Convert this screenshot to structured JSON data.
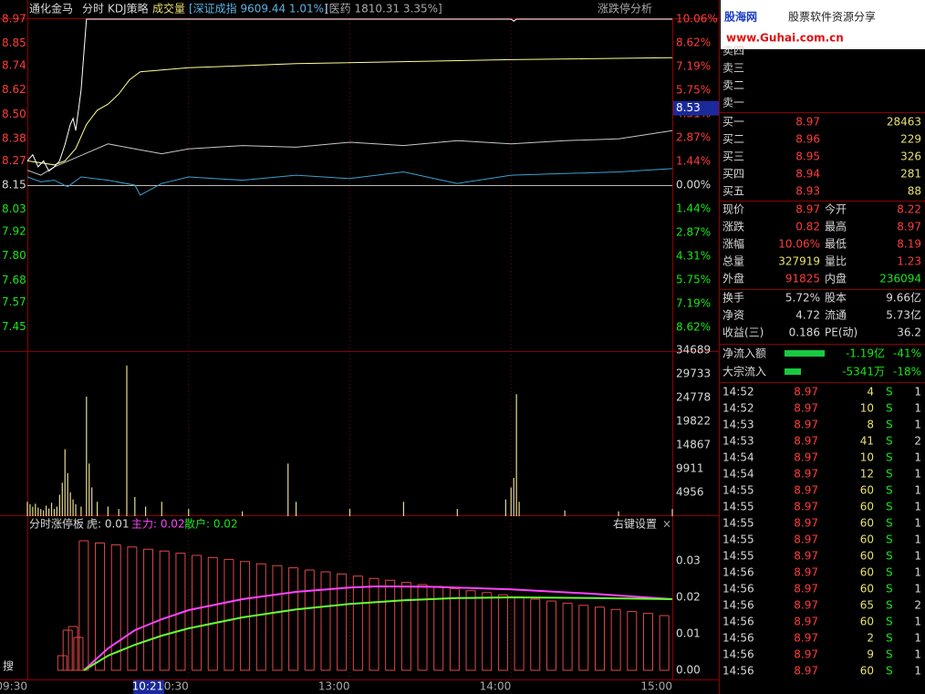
{
  "header": {
    "stock": "通化金马",
    "tabs": [
      "分时",
      "KDJ策略",
      "成交量"
    ],
    "index1": "[深证成指 9609.44 1.01%]",
    "index2": "[医药 1810.31 3.35%]",
    "analysis": "涨跌停分析"
  },
  "chart": {
    "xlim": [
      0,
      240
    ],
    "xticks": [
      {
        "value": 0,
        "label": "09:30"
      },
      {
        "value": 60,
        "label": "10:30"
      },
      {
        "value": 120,
        "label": "13:00"
      },
      {
        "value": 180,
        "label": "14:00"
      },
      {
        "value": 240,
        "label": "15:00"
      }
    ],
    "cursor": {
      "value": 51,
      "label": "10:21"
    },
    "price": {
      "ylim": [
        7.33,
        8.97
      ],
      "yticks": [
        8.97,
        8.85,
        8.74,
        8.62,
        {
          "value": 8.5,
          "label": "8.50"
        },
        8.38,
        8.27,
        8.15,
        8.03,
        7.92,
        {
          "value": 7.8,
          "label": "7.80"
        },
        7.68,
        7.57,
        7.45
      ],
      "y2lim": [
        -10.06,
        10.06
      ],
      "y2ticks": [
        {
          "value": 10.06,
          "label": "10.06%"
        },
        {
          "value": 8.62,
          "label": "8.62%"
        },
        {
          "value": 7.19,
          "label": "7.19%"
        },
        {
          "value": 5.75,
          "label": "5.75%"
        },
        {
          "value": 4.31,
          "label": "4.31%"
        },
        {
          "value": 2.87,
          "label": "2.87%"
        },
        {
          "value": 1.44,
          "label": "1.44%"
        },
        {
          "value": 0,
          "label": "0.00%"
        },
        {
          "value": -1.44,
          "label": "1.44%"
        },
        {
          "value": -2.87,
          "label": "2.87%"
        },
        {
          "value": -4.31,
          "label": "4.31%"
        },
        {
          "value": -5.75,
          "label": "5.75%"
        },
        {
          "value": -7.19,
          "label": "7.19%"
        },
        {
          "value": -8.62,
          "label": "8.62%"
        }
      ],
      "cursor_price": 8.53,
      "price_line": {
        "x": [
          0,
          2,
          4,
          6,
          8,
          10,
          12,
          14,
          16,
          17,
          18,
          19,
          20,
          21,
          22,
          100,
          180,
          181,
          182,
          240
        ],
        "values": [
          8.27,
          8.3,
          8.24,
          8.27,
          8.22,
          8.24,
          8.27,
          8.35,
          8.45,
          8.48,
          8.42,
          8.52,
          8.62,
          8.8,
          8.97,
          8.97,
          8.97,
          8.96,
          8.97,
          8.97
        ]
      },
      "avg_line": {
        "x": [
          0,
          10,
          14,
          18,
          22,
          26,
          30,
          34,
          38,
          42,
          60,
          100,
          140,
          180,
          240
        ],
        "values": [
          8.27,
          8.25,
          8.27,
          8.33,
          8.45,
          8.52,
          8.55,
          8.6,
          8.67,
          8.71,
          8.73,
          8.75,
          8.76,
          8.77,
          8.78
        ]
      },
      "sector_line": {
        "x": [
          0,
          5,
          10,
          20,
          30,
          40,
          50,
          60,
          80,
          100,
          120,
          140,
          160,
          180,
          200,
          220,
          240
        ],
        "values": [
          0.9,
          0.6,
          1.1,
          1.8,
          2.5,
          2.2,
          1.9,
          2.2,
          2.4,
          2.3,
          2.6,
          2.4,
          2.7,
          2.5,
          2.7,
          2.8,
          3.3
        ]
      },
      "index_line": {
        "x": [
          0,
          5,
          10,
          15,
          20,
          30,
          40,
          42,
          50,
          60,
          80,
          100,
          120,
          140,
          160,
          180,
          200,
          220,
          240
        ],
        "values": [
          0.5,
          0.2,
          0.3,
          -0.1,
          0.5,
          0.3,
          0,
          -0.6,
          0.1,
          0.5,
          0.3,
          0.6,
          0.4,
          0.8,
          0.1,
          0.6,
          0.7,
          0.8,
          1.0
        ]
      }
    },
    "volume": {
      "ylim": [
        0,
        34689
      ],
      "yticks": [
        4956,
        9911,
        14867,
        19822,
        24778,
        29733,
        34689
      ],
      "x": [
        0,
        1,
        2,
        3,
        4,
        5,
        6,
        7,
        8,
        9,
        10,
        11,
        12,
        13,
        14,
        15,
        16,
        17,
        18,
        20,
        22,
        23,
        24,
        26,
        30,
        34,
        37,
        40,
        44,
        50,
        60,
        80,
        97,
        100,
        120,
        140,
        160,
        178,
        180,
        181,
        182,
        183,
        200,
        220,
        240
      ],
      "values": [
        3000,
        2500,
        2000,
        2600,
        1800,
        1500,
        1200,
        2200,
        1600,
        2800,
        1500,
        2000,
        4500,
        7000,
        14000,
        9000,
        5000,
        3500,
        2500,
        2000,
        25000,
        11000,
        6000,
        3000,
        2000,
        1500,
        31500,
        4000,
        2000,
        3000,
        1500,
        1000,
        11000,
        3000,
        1500,
        3000,
        1500,
        3500,
        6000,
        8000,
        25500,
        3000,
        1200,
        1000,
        1500
      ]
    },
    "indicator": {
      "title": "分时涨停板",
      "legend": [
        "虎: 0.01",
        "主力: 0.02",
        "散户: 0.02"
      ],
      "settings": "右键设置",
      "close": "×",
      "ylim": [
        0,
        0.04
      ],
      "yticks": [
        {
          "value": 0,
          "label": "0.00"
        },
        0.01,
        0.02,
        0.03
      ],
      "bars": {
        "x": [
          13,
          15,
          17,
          19,
          21,
          27,
          33,
          39,
          45,
          51,
          57,
          63,
          69,
          75,
          81,
          87,
          93,
          99,
          105,
          111,
          117,
          123,
          129,
          135,
          141,
          147,
          153,
          159,
          165,
          171,
          177,
          183,
          189,
          195,
          201,
          207,
          213,
          219,
          225,
          231,
          237
        ],
        "values": [
          0.004,
          0.011,
          0.012,
          0.009,
          0.0355,
          0.0349,
          0.0344,
          0.0338,
          0.0332,
          0.0327,
          0.0321,
          0.0315,
          0.0309,
          0.0304,
          0.0298,
          0.0292,
          0.0287,
          0.0281,
          0.0275,
          0.027,
          0.0264,
          0.0258,
          0.0252,
          0.0247,
          0.0241,
          0.0235,
          0.023,
          0.0224,
          0.0218,
          0.0213,
          0.0207,
          0.0201,
          0.0195,
          0.019,
          0.0184,
          0.0178,
          0.0173,
          0.0167,
          0.0161,
          0.0156,
          0.015
        ]
      },
      "main_line": {
        "x": [
          21,
          30,
          40,
          50,
          60,
          80,
          100,
          120,
          130,
          150,
          180,
          210,
          240
        ],
        "values": [
          0,
          0.006,
          0.011,
          0.014,
          0.0165,
          0.0195,
          0.0215,
          0.0227,
          0.023,
          0.0229,
          0.0222,
          0.021,
          0.0195
        ]
      },
      "retail_line": {
        "x": [
          21,
          30,
          40,
          50,
          60,
          80,
          100,
          120,
          140,
          160,
          180,
          210,
          240
        ],
        "values": [
          0,
          0.004,
          0.007,
          0.0095,
          0.0115,
          0.0145,
          0.0167,
          0.0182,
          0.0192,
          0.0198,
          0.02,
          0.0198,
          0.0195
        ]
      }
    }
  },
  "search": "搜",
  "banner": {
    "logo": "股海网",
    "slogan": "股票软件资源分享",
    "url": "www.Guhai.com.cn"
  },
  "order_book": {
    "sell": [
      "卖四",
      "卖三",
      "卖二",
      "卖一"
    ],
    "buy": [
      [
        "买一",
        "8.97",
        "28463"
      ],
      [
        "买二",
        "8.96",
        "229"
      ],
      [
        "买三",
        "8.95",
        "326"
      ],
      [
        "买四",
        "8.94",
        "281"
      ],
      [
        "买五",
        "8.93",
        "88"
      ]
    ]
  },
  "stats": [
    [
      "现价",
      "8.97",
      "今开",
      "8.22"
    ],
    [
      "涨跌",
      "0.82",
      "最高",
      "8.97"
    ],
    [
      "涨幅",
      "10.06%",
      "最低",
      "8.19"
    ],
    [
      "总量",
      "327919",
      "量比",
      "1.23"
    ],
    [
      "外盘",
      "91825",
      "内盘",
      "236094"
    ],
    [
      "换手",
      "5.72%",
      "股本",
      "9.66亿"
    ],
    [
      "净资",
      "4.72",
      "流通",
      "5.73亿"
    ],
    [
      "收益(三)",
      "0.186",
      "PE(动)",
      "36.2"
    ]
  ],
  "flows": [
    [
      "净流入额",
      "-1.19亿",
      "-41%"
    ],
    [
      "大宗流入",
      "-5341万",
      "-18%"
    ]
  ],
  "trades": [
    [
      "14:52",
      "8.97",
      "4",
      "S",
      "1"
    ],
    [
      "14:52",
      "8.97",
      "10",
      "S",
      "1"
    ],
    [
      "14:53",
      "8.97",
      "8",
      "S",
      "1"
    ],
    [
      "14:53",
      "8.97",
      "41",
      "S",
      "2"
    ],
    [
      "14:54",
      "8.97",
      "10",
      "S",
      "1"
    ],
    [
      "14:54",
      "8.97",
      "12",
      "S",
      "1"
    ],
    [
      "14:55",
      "8.97",
      "60",
      "S",
      "1"
    ],
    [
      "14:55",
      "8.97",
      "60",
      "S",
      "1"
    ],
    [
      "14:55",
      "8.97",
      "60",
      "S",
      "1"
    ],
    [
      "14:55",
      "8.97",
      "60",
      "S",
      "1"
    ],
    [
      "14:55",
      "8.97",
      "60",
      "S",
      "1"
    ],
    [
      "14:56",
      "8.97",
      "60",
      "S",
      "1"
    ],
    [
      "14:56",
      "8.97",
      "60",
      "S",
      "1"
    ],
    [
      "14:56",
      "8.97",
      "65",
      "S",
      "2"
    ],
    [
      "14:56",
      "8.97",
      "60",
      "S",
      "1"
    ],
    [
      "14:56",
      "8.97",
      "2",
      "S",
      "1"
    ],
    [
      "14:56",
      "8.97",
      "9",
      "S",
      "1"
    ],
    [
      "14:56",
      "8.97",
      "60",
      "S",
      "1"
    ]
  ]
}
